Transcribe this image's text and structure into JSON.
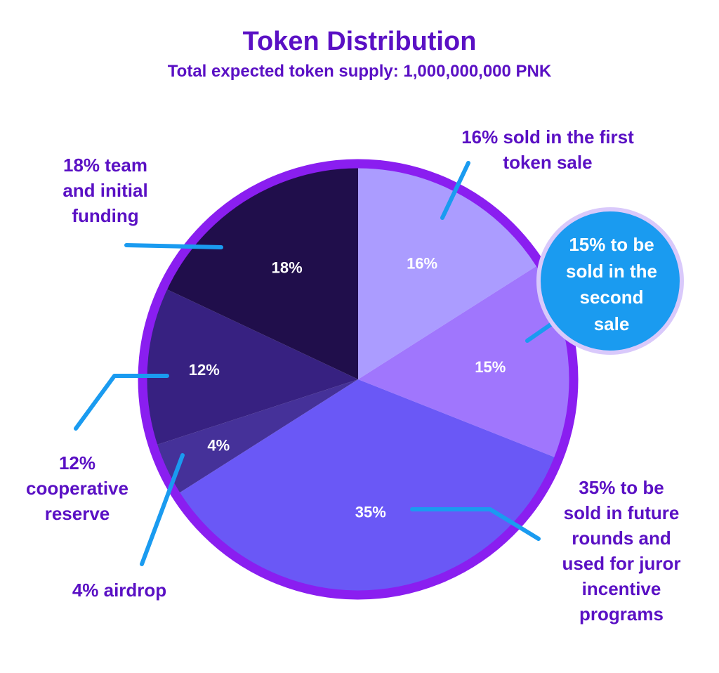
{
  "title": "Token Distribution",
  "subtitle": "Total expected token supply: 1,000,000,000 PNK",
  "chart_data": {
    "type": "pie",
    "title": "Token Distribution",
    "subtitle": "Total expected token supply: 1,000,000,000 PNK",
    "slices": [
      {
        "value": 16,
        "label": "16%",
        "color": "#ab9cff",
        "annotation": "16% sold in the first token sale"
      },
      {
        "value": 15,
        "label": "15%",
        "color": "#a076fd",
        "annotation": "15% to be sold in the second sale"
      },
      {
        "value": 35,
        "label": "35%",
        "color": "#6a58f6",
        "annotation": "35% to be sold in future rounds and used for juror incentive programs"
      },
      {
        "value": 4,
        "label": "4%",
        "color": "#453199",
        "annotation": "4% airdrop"
      },
      {
        "value": 12,
        "label": "12%",
        "color": "#372181",
        "annotation": "12% cooperative reserve"
      },
      {
        "value": 18,
        "label": "18%",
        "color": "#200e4b",
        "annotation": "18% team and initial funding"
      }
    ]
  },
  "annotations": {
    "first_sale": [
      "16% sold in the first",
      "token sale"
    ],
    "second_sale": [
      "15% to be",
      "sold in the",
      "second",
      "sale"
    ],
    "future": [
      "35% to be",
      "sold in future",
      "rounds and",
      "used for juror",
      "incentive",
      "programs"
    ],
    "airdrop": [
      "4% airdrop"
    ],
    "cooperative": [
      "12%",
      "cooperative",
      "reserve"
    ],
    "team": [
      "18% team",
      "and initial",
      "funding"
    ]
  },
  "colors": {
    "ring": "#8a1ef0",
    "leader": "#1a9bf0",
    "bubble": "#1a9bf0",
    "bubble_border": "#d9c9fb",
    "text": "#5a10c4"
  }
}
